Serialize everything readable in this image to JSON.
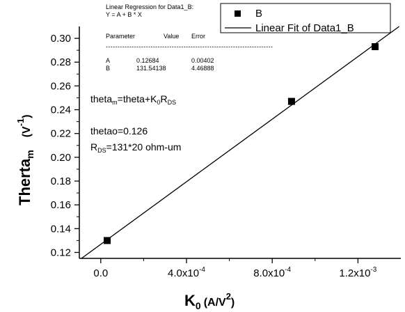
{
  "chart_data": {
    "type": "scatter",
    "xlim": [
      -0.0001,
      0.0014
    ],
    "ylim": [
      0.115,
      0.31
    ],
    "x_ticks": [
      {
        "value": 0.0,
        "label": "0.0"
      },
      {
        "value": 0.0004,
        "mantissa": "4.0x10",
        "exponent": "-4"
      },
      {
        "value": 0.0008,
        "mantissa": "8.0x10",
        "exponent": "-4"
      },
      {
        "value": 0.0012,
        "mantissa": "1.2x10",
        "exponent": "-3"
      }
    ],
    "y_ticks": [
      {
        "value": 0.12,
        "label": "0.12"
      },
      {
        "value": 0.14,
        "label": "0.14"
      },
      {
        "value": 0.16,
        "label": "0.16"
      },
      {
        "value": 0.18,
        "label": "0.18"
      },
      {
        "value": 0.2,
        "label": "0.20"
      },
      {
        "value": 0.22,
        "label": "0.22"
      },
      {
        "value": 0.24,
        "label": "0.24"
      },
      {
        "value": 0.26,
        "label": "0.26"
      },
      {
        "value": 0.28,
        "label": "0.28"
      },
      {
        "value": 0.3,
        "label": "0.30"
      }
    ],
    "series": [
      {
        "name": "B",
        "marker": "square",
        "x": [
          3e-05,
          0.00089,
          0.00128
        ],
        "y": [
          0.13,
          0.247,
          0.293
        ]
      }
    ],
    "fit": {
      "name": "Linear Fit of Data1_B",
      "intercept": 0.12684,
      "slope": 131.54138
    },
    "xlabel": {
      "main": "K",
      "sub": "0",
      "unit_open": "(A/V",
      "sup": "2",
      "unit_close": ")"
    },
    "ylabel": {
      "main": "Therta",
      "sub": "m",
      "unit_open": "(V",
      "sup": "-1",
      "unit_close": ")"
    },
    "legend_position": "top-right",
    "grid": false,
    "regression_box": {
      "line1": "Linear Regression for Data1_B:",
      "line2": "Y = A + B * X",
      "headers": [
        "Parameter",
        "Value",
        "Error"
      ],
      "dashes": "-----------------------------------------------------------------------",
      "rows": [
        [
          "A",
          "0.12684",
          "0.00402"
        ],
        [
          "B",
          "131.54138",
          "4.46888"
        ]
      ]
    },
    "annotations": {
      "formula": {
        "p1": "theta",
        "s1": "m",
        "p2": "=theta+K",
        "s2": "0",
        "p3": "R",
        "s3": "DS"
      },
      "thetao": "thetao=0.126",
      "rds": {
        "p1": "R",
        "s1": "DS",
        "p2": "=131*20 ohm-um"
      }
    }
  }
}
